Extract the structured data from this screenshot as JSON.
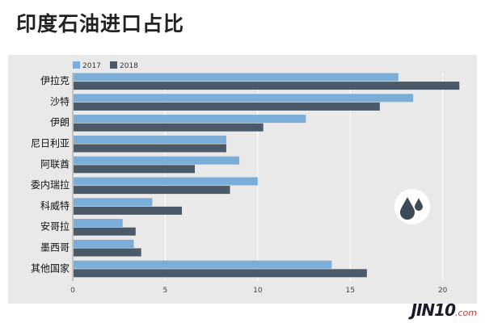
{
  "page": {
    "title": "印度石油进口占比",
    "watermark": "JIN10",
    "watermark_sub": ".com"
  },
  "chart_data": {
    "type": "bar",
    "orientation": "horizontal",
    "title": "印度石油进口占比",
    "categories": [
      "伊拉克",
      "沙特",
      "伊朗",
      "尼日利亚",
      "阿联酋",
      "委内瑞拉",
      "科威特",
      "安哥拉",
      "墨西哥",
      "其他国家"
    ],
    "series": [
      {
        "name": "2017",
        "color": "#7aaed8",
        "values": [
          17.6,
          18.4,
          12.6,
          8.3,
          9.0,
          10.0,
          4.3,
          2.7,
          3.3,
          14.0
        ]
      },
      {
        "name": "2018",
        "color": "#4a5a68",
        "values": [
          20.9,
          16.6,
          10.3,
          8.3,
          6.6,
          8.5,
          5.9,
          3.4,
          3.7,
          15.9
        ]
      }
    ],
    "xticks": [
      0,
      5,
      10,
      15,
      20
    ],
    "xlim": [
      0,
      21.5
    ],
    "legend": "top-left",
    "grid": true,
    "icon": "water-drops-icon"
  }
}
